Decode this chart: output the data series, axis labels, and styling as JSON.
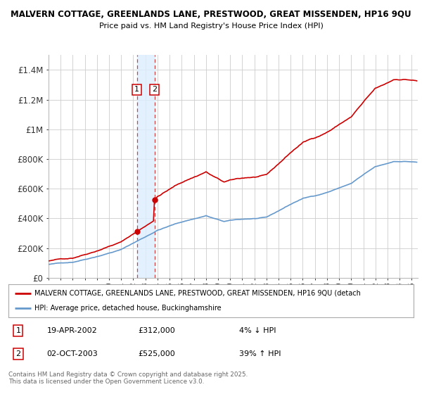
{
  "title1": "MALVERN COTTAGE, GREENLANDS LANE, PRESTWOOD, GREAT MISSENDEN, HP16 9QU",
  "title2": "Price paid vs. HM Land Registry's House Price Index (HPI)",
  "ylim": [
    0,
    1500000
  ],
  "yticks": [
    0,
    200000,
    400000,
    600000,
    800000,
    1000000,
    1200000,
    1400000
  ],
  "ytick_labels": [
    "£0",
    "£200K",
    "£400K",
    "£600K",
    "£800K",
    "£1M",
    "£1.2M",
    "£1.4M"
  ],
  "line1_color": "#cc0000",
  "line2_color": "#6699cc",
  "purchase1_date_x": 2002.3,
  "purchase1_price": 312000,
  "purchase2_date_x": 2003.75,
  "purchase2_price": 525000,
  "sale_marker_color": "#cc0000",
  "legend_label1": "MALVERN COTTAGE, GREENLANDS LANE, PRESTWOOD, GREAT MISSENDEN, HP16 9QU (detach",
  "legend_label2": "HPI: Average price, detached house, Buckinghamshire",
  "table_row1_num": "1",
  "table_row1_date": "19-APR-2002",
  "table_row1_price": "£312,000",
  "table_row1_hpi": "4% ↓ HPI",
  "table_row2_num": "2",
  "table_row2_date": "02-OCT-2003",
  "table_row2_price": "£525,000",
  "table_row2_hpi": "39% ↑ HPI",
  "footer": "Contains HM Land Registry data © Crown copyright and database right 2025.\nThis data is licensed under the Open Government Licence v3.0.",
  "bg_color": "#ffffff",
  "grid_color": "#cccccc",
  "shade_color": "#ddeeff",
  "xlim_start": 1995,
  "xlim_end": 2025.5
}
